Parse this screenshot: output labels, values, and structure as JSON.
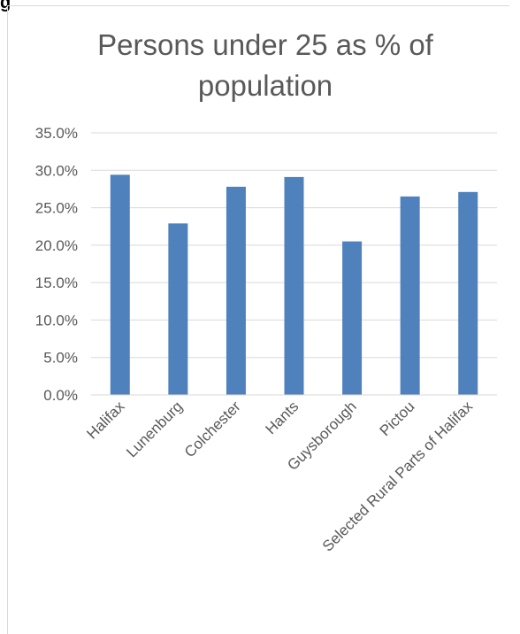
{
  "page_corner_text": "g",
  "chart_data": {
    "type": "bar",
    "title": "Persons under 25 as % of population",
    "title_lines": [
      "Persons under 25 as % of",
      "population"
    ],
    "categories": [
      "Halifax",
      "Lunenburg",
      "Colchester",
      "Hants",
      "Guysborough",
      "Pictou",
      "Selected Rural Parts of Halifax"
    ],
    "values": [
      29.4,
      22.9,
      27.8,
      29.1,
      20.5,
      26.5,
      27.1
    ],
    "ylim": [
      0,
      35
    ],
    "yticks": [
      0,
      5,
      10,
      15,
      20,
      25,
      30,
      35
    ],
    "ytick_labels": [
      "0.0%",
      "5.0%",
      "10.0%",
      "15.0%",
      "20.0%",
      "25.0%",
      "30.0%",
      "35.0%"
    ],
    "bar_color": "#4f81bd",
    "gridlines": true,
    "legend": "none"
  }
}
